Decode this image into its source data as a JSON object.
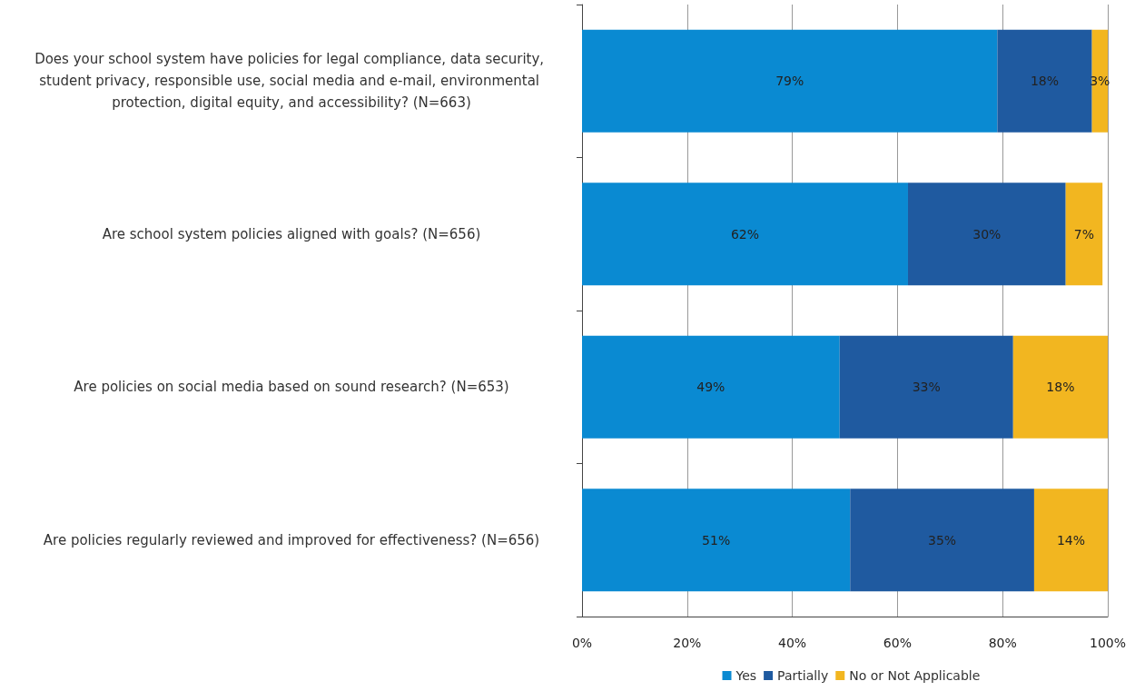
{
  "chart_data": {
    "type": "bar",
    "orientation": "horizontal",
    "stacked": true,
    "categories": [
      "Does your school system have policies for legal compliance, data security, student privacy, responsible use, social media and e-mail, environmental protection, digital equity, and accessibility? (N=663)",
      "Are school system policies aligned with goals? (N=656)",
      "Are policies on social media based on sound research? (N=653)",
      "Are policies regularly reviewed and improved for effectiveness? (N=656)"
    ],
    "series": [
      {
        "name": "Yes",
        "color": "#0a8ad2",
        "values": [
          79,
          62,
          49,
          51
        ],
        "value_labels": [
          "79%",
          "62%",
          "49%",
          "51%"
        ]
      },
      {
        "name": "Partially",
        "color": "#1f5aa0",
        "values": [
          18,
          30,
          33,
          35
        ],
        "value_labels": [
          "18%",
          "30%",
          "33%",
          "35%"
        ]
      },
      {
        "name": "No or Not Applicable",
        "color": "#f2b620",
        "values": [
          3,
          7,
          18,
          14
        ],
        "value_labels": [
          "3%",
          "7%",
          "18%",
          "14%"
        ]
      }
    ],
    "xlim": [
      0,
      100
    ],
    "xticks": [
      {
        "value": 0,
        "label": "0%"
      },
      {
        "value": 20,
        "label": "20%"
      },
      {
        "value": 40,
        "label": "40%"
      },
      {
        "value": 60,
        "label": "60%"
      },
      {
        "value": 80,
        "label": "80%"
      },
      {
        "value": 100,
        "label": "100%"
      }
    ],
    "grid": "x",
    "legend": "bottom"
  }
}
